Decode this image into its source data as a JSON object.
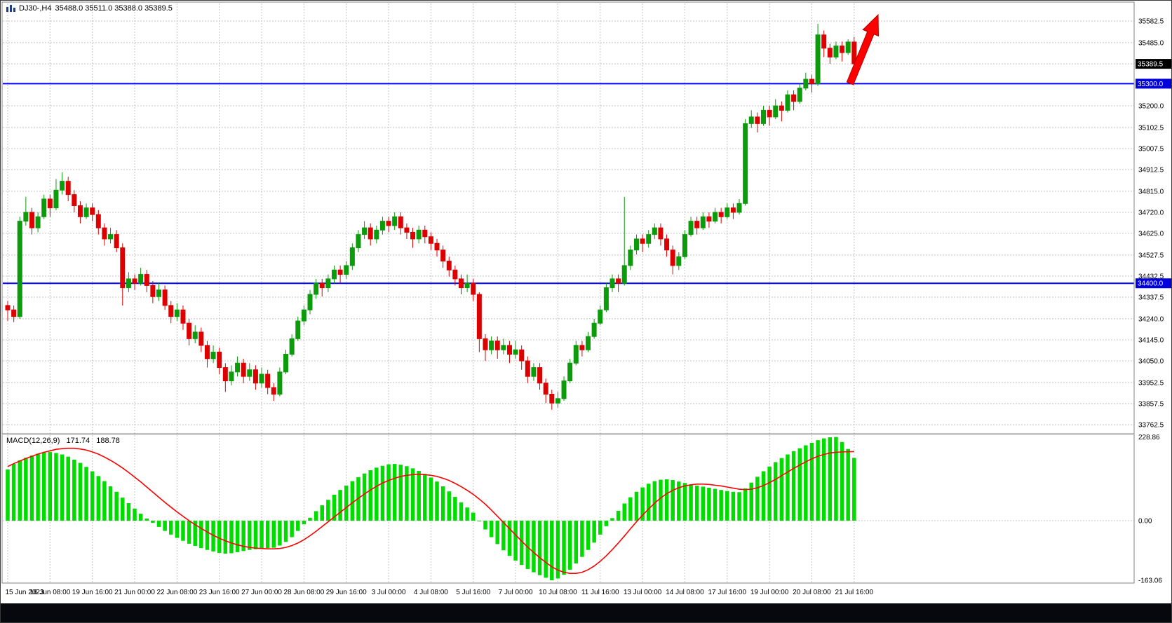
{
  "info_bar": {
    "symbol_period": "DJ30-,H4",
    "ohlc": "35488.0 35511.0 35388.0 35389.5"
  },
  "colors": {
    "bull": "#0b9b0b",
    "bear": "#dd0000",
    "grid": "#c4c4c4",
    "hline": "#0000ff",
    "macd_hist": "#00dc00",
    "macd_signal": "#ff0000",
    "arrow": "#ff0000",
    "tag_current_bg": "#000000",
    "tag_line_bg": "#0000dd"
  },
  "chart_data": {
    "type": "candlestick",
    "title": "DJ30-,H4",
    "symbol": "DJ30-",
    "timeframe": "H4",
    "current_ohlc": {
      "open": 35488.0,
      "high": 35511.0,
      "low": 35388.0,
      "close": 35389.5
    },
    "price_ticks": [
      "35582.5",
      "35485.0",
      "35389.5",
      "35300.0",
      "35200.0",
      "35102.5",
      "35007.5",
      "34912.5",
      "34815.0",
      "34720.0",
      "34625.0",
      "34527.5",
      "34432.5",
      "34337.5",
      "34240.0",
      "34145.0",
      "34050.0",
      "33952.5",
      "33857.5",
      "33762.5"
    ],
    "price_tags": [
      {
        "text": "35389.5",
        "price": 35389.5,
        "bg": "#000000"
      },
      {
        "text": "35300.0",
        "price": 35300.0,
        "bg": "#0000dd"
      },
      {
        "text": "34400.0",
        "price": 34400.0,
        "bg": "#0000dd"
      }
    ],
    "time_labels": [
      {
        "text": "15 Jun 2023",
        "index": 0
      },
      {
        "text": "16 Jun 08:00",
        "index": 7
      },
      {
        "text": "19 Jun 16:00",
        "index": 14
      },
      {
        "text": "21 Jun 00:00",
        "index": 21
      },
      {
        "text": "22 Jun 08:00",
        "index": 28
      },
      {
        "text": "23 Jun 16:00",
        "index": 35
      },
      {
        "text": "27 Jun 00:00",
        "index": 42
      },
      {
        "text": "28 Jun 08:00",
        "index": 49
      },
      {
        "text": "29 Jun 16:00",
        "index": 56
      },
      {
        "text": "3 Jul 00:00",
        "index": 63
      },
      {
        "text": "4 Jul 08:00",
        "index": 70
      },
      {
        "text": "5 Jul 16:00",
        "index": 77
      },
      {
        "text": "7 Jul 00:00",
        "index": 84
      },
      {
        "text": "10 Jul 08:00",
        "index": 91
      },
      {
        "text": "11 Jul 16:00",
        "index": 98
      },
      {
        "text": "13 Jul 00:00",
        "index": 105
      },
      {
        "text": "14 Jul 08:00",
        "index": 112
      },
      {
        "text": "17 Jul 16:00",
        "index": 119
      },
      {
        "text": "19 Jul 00:00",
        "index": 126
      },
      {
        "text": "20 Jul 08:00",
        "index": 133
      },
      {
        "text": "21 Jul 16:00",
        "index": 140
      }
    ],
    "hlines": [
      {
        "price": 35300.0,
        "color": "#0000ff"
      },
      {
        "price": 34400.0,
        "color": "#0000ff"
      }
    ],
    "annotation_arrow": {
      "type": "arrow",
      "direction": "up-right",
      "color": "#ff0000"
    },
    "candles": [
      [
        34300,
        34320,
        34230,
        34280
      ],
      [
        34280,
        34300,
        34225,
        34250
      ],
      [
        34250,
        34700,
        34240,
        34680
      ],
      [
        34680,
        34790,
        34660,
        34720
      ],
      [
        34720,
        34740,
        34620,
        34650
      ],
      [
        34650,
        34720,
        34630,
        34700
      ],
      [
        34700,
        34800,
        34690,
        34780
      ],
      [
        34780,
        34800,
        34700,
        34740
      ],
      [
        34740,
        34870,
        34730,
        34820
      ],
      [
        34820,
        34900,
        34800,
        34860
      ],
      [
        34860,
        34880,
        34770,
        34800
      ],
      [
        34800,
        34820,
        34720,
        34750
      ],
      [
        34750,
        34770,
        34670,
        34700
      ],
      [
        34700,
        34760,
        34690,
        34740
      ],
      [
        34740,
        34760,
        34680,
        34710
      ],
      [
        34710,
        34730,
        34620,
        34650
      ],
      [
        34650,
        34670,
        34570,
        34600
      ],
      [
        34600,
        34650,
        34580,
        34620
      ],
      [
        34620,
        34640,
        34540,
        34560
      ],
      [
        34560,
        34580,
        34300,
        34380
      ],
      [
        34380,
        34450,
        34360,
        34420
      ],
      [
        34420,
        34440,
        34370,
        34400
      ],
      [
        34400,
        34470,
        34390,
        34440
      ],
      [
        34440,
        34460,
        34360,
        34390
      ],
      [
        34390,
        34410,
        34310,
        34340
      ],
      [
        34340,
        34400,
        34320,
        34370
      ],
      [
        34370,
        34390,
        34280,
        34300
      ],
      [
        34300,
        34320,
        34220,
        34250
      ],
      [
        34250,
        34310,
        34230,
        34280
      ],
      [
        34280,
        34300,
        34190,
        34220
      ],
      [
        34220,
        34240,
        34120,
        34150
      ],
      [
        34150,
        34210,
        34130,
        34180
      ],
      [
        34180,
        34200,
        34090,
        34120
      ],
      [
        34120,
        34140,
        34020,
        34060
      ],
      [
        34060,
        34120,
        34040,
        34090
      ],
      [
        34090,
        34110,
        33990,
        34020
      ],
      [
        34020,
        34040,
        33910,
        33960
      ],
      [
        33960,
        34030,
        33940,
        34000
      ],
      [
        34000,
        34070,
        33980,
        34040
      ],
      [
        34040,
        34060,
        33950,
        33980
      ],
      [
        33980,
        34040,
        33960,
        34010
      ],
      [
        34010,
        34030,
        33920,
        33950
      ],
      [
        33950,
        34020,
        33930,
        33990
      ],
      [
        33990,
        34010,
        33900,
        33930
      ],
      [
        33930,
        33950,
        33870,
        33900
      ],
      [
        33900,
        34020,
        33890,
        34000
      ],
      [
        34000,
        34100,
        33990,
        34080
      ],
      [
        34080,
        34170,
        34070,
        34150
      ],
      [
        34150,
        34250,
        34140,
        34230
      ],
      [
        34230,
        34300,
        34210,
        34280
      ],
      [
        34280,
        34370,
        34260,
        34350
      ],
      [
        34350,
        34420,
        34330,
        34400
      ],
      [
        34400,
        34420,
        34340,
        34380
      ],
      [
        34380,
        34440,
        34360,
        34420
      ],
      [
        34420,
        34480,
        34400,
        34460
      ],
      [
        34460,
        34480,
        34400,
        34440
      ],
      [
        34440,
        34500,
        34420,
        34480
      ],
      [
        34480,
        34580,
        34460,
        34560
      ],
      [
        34560,
        34640,
        34540,
        34620
      ],
      [
        34620,
        34680,
        34600,
        34650
      ],
      [
        34650,
        34670,
        34570,
        34600
      ],
      [
        34600,
        34660,
        34580,
        34640
      ],
      [
        34640,
        34700,
        34620,
        34680
      ],
      [
        34680,
        34700,
        34630,
        34660
      ],
      [
        34660,
        34720,
        34640,
        34700
      ],
      [
        34700,
        34720,
        34620,
        34650
      ],
      [
        34650,
        34670,
        34600,
        34630
      ],
      [
        34630,
        34650,
        34560,
        34600
      ],
      [
        34600,
        34660,
        34580,
        34640
      ],
      [
        34640,
        34660,
        34580,
        34610
      ],
      [
        34610,
        34630,
        34550,
        34580
      ],
      [
        34580,
        34600,
        34520,
        34550
      ],
      [
        34550,
        34570,
        34470,
        34500
      ],
      [
        34500,
        34520,
        34430,
        34460
      ],
      [
        34460,
        34480,
        34390,
        34420
      ],
      [
        34420,
        34440,
        34350,
        34380
      ],
      [
        34380,
        34440,
        34360,
        34400
      ],
      [
        34400,
        34420,
        34320,
        34350
      ],
      [
        34350,
        34360,
        34090,
        34150
      ],
      [
        34150,
        34170,
        34050,
        34100
      ],
      [
        34100,
        34160,
        34080,
        34140
      ],
      [
        34140,
        34160,
        34060,
        34100
      ],
      [
        34100,
        34150,
        34080,
        34120
      ],
      [
        34120,
        34140,
        34040,
        34080
      ],
      [
        34080,
        34140,
        34060,
        34100
      ],
      [
        34100,
        34120,
        34010,
        34050
      ],
      [
        34050,
        34070,
        33950,
        33980
      ],
      [
        33980,
        34040,
        33960,
        34020
      ],
      [
        34020,
        34040,
        33920,
        33950
      ],
      [
        33950,
        33970,
        33860,
        33900
      ],
      [
        33900,
        33920,
        33830,
        33860
      ],
      [
        33860,
        33910,
        33840,
        33880
      ],
      [
        33880,
        33980,
        33870,
        33960
      ],
      [
        33960,
        34060,
        33950,
        34040
      ],
      [
        34040,
        34140,
        34030,
        34120
      ],
      [
        34120,
        34140,
        34070,
        34100
      ],
      [
        34100,
        34180,
        34090,
        34160
      ],
      [
        34160,
        34240,
        34150,
        34220
      ],
      [
        34220,
        34300,
        34210,
        34280
      ],
      [
        34280,
        34400,
        34270,
        34380
      ],
      [
        34380,
        34440,
        34360,
        34420
      ],
      [
        34420,
        34440,
        34360,
        34400
      ],
      [
        34400,
        34790,
        34390,
        34480
      ],
      [
        34480,
        34570,
        34460,
        34550
      ],
      [
        34550,
        34620,
        34530,
        34600
      ],
      [
        34600,
        34620,
        34540,
        34580
      ],
      [
        34580,
        34640,
        34560,
        34620
      ],
      [
        34620,
        34670,
        34600,
        34650
      ],
      [
        34650,
        34670,
        34570,
        34600
      ],
      [
        34600,
        34620,
        34520,
        34550
      ],
      [
        34550,
        34570,
        34440,
        34480
      ],
      [
        34480,
        34540,
        34460,
        34520
      ],
      [
        34520,
        34640,
        34510,
        34620
      ],
      [
        34620,
        34700,
        34610,
        34680
      ],
      [
        34680,
        34700,
        34620,
        34650
      ],
      [
        34650,
        34720,
        34640,
        34700
      ],
      [
        34700,
        34720,
        34650,
        34680
      ],
      [
        34680,
        34740,
        34670,
        34720
      ],
      [
        34720,
        34740,
        34670,
        34700
      ],
      [
        34700,
        34760,
        34690,
        34740
      ],
      [
        34740,
        34760,
        34690,
        34720
      ],
      [
        34720,
        34780,
        34710,
        34760
      ],
      [
        34760,
        35140,
        34750,
        35120
      ],
      [
        35120,
        35180,
        35100,
        35150
      ],
      [
        35150,
        35170,
        35080,
        35120
      ],
      [
        35120,
        35200,
        35110,
        35180
      ],
      [
        35180,
        35200,
        35110,
        35150
      ],
      [
        35150,
        35230,
        35140,
        35200
      ],
      [
        35200,
        35220,
        35130,
        35180
      ],
      [
        35180,
        35270,
        35170,
        35250
      ],
      [
        35250,
        35270,
        35180,
        35220
      ],
      [
        35220,
        35300,
        35210,
        35280
      ],
      [
        35280,
        35350,
        35270,
        35320
      ],
      [
        35320,
        35340,
        35260,
        35300
      ],
      [
        35300,
        35570,
        35290,
        35520
      ],
      [
        35520,
        35540,
        35420,
        35460
      ],
      [
        35460,
        35480,
        35390,
        35420
      ],
      [
        35420,
        35490,
        35410,
        35470
      ],
      [
        35470,
        35490,
        35400,
        35440
      ],
      [
        35440,
        35500,
        35430,
        35488
      ],
      [
        35488,
        35511,
        35388,
        35389.5
      ]
    ],
    "macd": {
      "label": "MACD(12,26,9)",
      "current_macd": 171.74,
      "current_signal": 188.78,
      "axis_labels": [
        {
          "text": "228.86",
          "value": 228.86
        },
        {
          "text": "0.00",
          "value": 0
        },
        {
          "text": "-163.06",
          "value": -163.06
        }
      ],
      "range": {
        "max": 228.86,
        "min": -163.06
      },
      "histogram": [
        140,
        155,
        165,
        172,
        178,
        183,
        186,
        188,
        185,
        181,
        175,
        167,
        158,
        147,
        135,
        122,
        108,
        94,
        79,
        63,
        48,
        33,
        19,
        6,
        -6,
        -17,
        -28,
        -38,
        -47,
        -55,
        -63,
        -69,
        -75,
        -80,
        -84,
        -88,
        -90,
        -89,
        -86,
        -83,
        -80,
        -78,
        -76,
        -75,
        -74,
        -68,
        -58,
        -45,
        -28,
        -10,
        8,
        26,
        42,
        57,
        71,
        84,
        96,
        108,
        119,
        129,
        138,
        145,
        150,
        154,
        155,
        153,
        149,
        143,
        136,
        128,
        118,
        107,
        94,
        80,
        65,
        50,
        36,
        22,
        -2,
        -24,
        -45,
        -64,
        -81,
        -96,
        -109,
        -121,
        -132,
        -141,
        -149,
        -156,
        -163,
        -158,
        -148,
        -134,
        -117,
        -99,
        -80,
        -60,
        -38,
        -15,
        7,
        27,
        47,
        64,
        79,
        91,
        101,
        108,
        112,
        113,
        111,
        107,
        103,
        99,
        96,
        93,
        90,
        87,
        84,
        81,
        79,
        78,
        88,
        104,
        120,
        135,
        148,
        160,
        171,
        181,
        190,
        198,
        206,
        213,
        220,
        225,
        228,
        228.86,
        215,
        196,
        171.74
      ],
      "signal": [
        148,
        156,
        163,
        170,
        176,
        182,
        187,
        191,
        195,
        197,
        198,
        198,
        196,
        193,
        188,
        182,
        174,
        165,
        155,
        144,
        132,
        119,
        106,
        92,
        78,
        64,
        50,
        37,
        24,
        12,
        0,
        -11,
        -21,
        -31,
        -40,
        -48,
        -55,
        -61,
        -66,
        -70,
        -73,
        -75,
        -76,
        -77,
        -77,
        -76,
        -73,
        -68,
        -61,
        -52,
        -41,
        -29,
        -16,
        -3,
        10,
        23,
        36,
        49,
        61,
        73,
        84,
        94,
        103,
        110,
        116,
        121,
        124,
        126,
        127,
        126,
        124,
        121,
        116,
        110,
        102,
        93,
        83,
        72,
        59,
        45,
        29,
        12,
        -5,
        -22,
        -39,
        -56,
        -72,
        -87,
        -101,
        -114,
        -126,
        -135,
        -141,
        -144,
        -144,
        -141,
        -134,
        -124,
        -111,
        -96,
        -79,
        -61,
        -42,
        -22,
        -3,
        15,
        32,
        48,
        62,
        74,
        83,
        90,
        95,
        98,
        100,
        100,
        99,
        97,
        95,
        92,
        89,
        86,
        85,
        86,
        90,
        96,
        104,
        113,
        123,
        133,
        143,
        152,
        161,
        169,
        176,
        181,
        185,
        187,
        188,
        188.5,
        188.78
      ]
    }
  }
}
